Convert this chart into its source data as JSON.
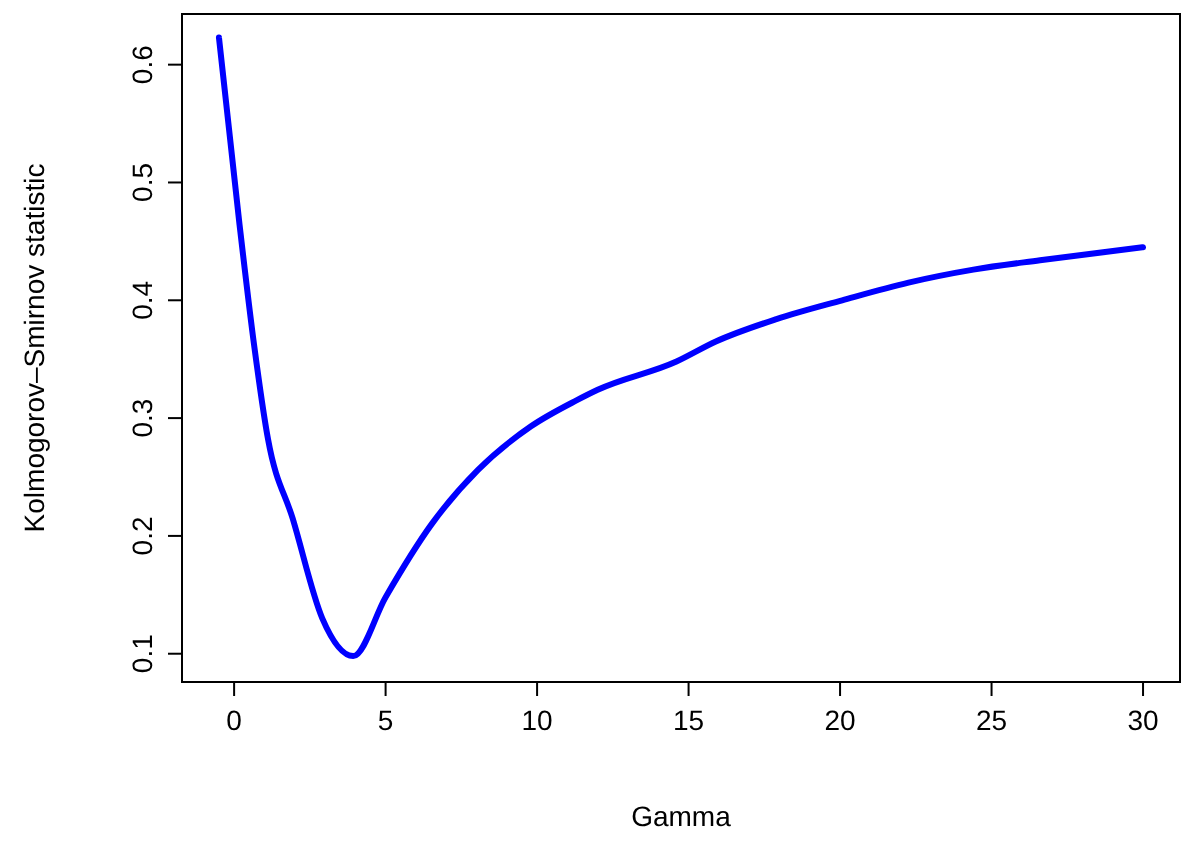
{
  "chart_data": {
    "type": "line",
    "xlabel": "Gamma",
    "ylabel": "Kolmogorov–Smirnov statistic",
    "xlim": [
      -1.72,
      31.22
    ],
    "ylim": [
      0.076,
      0.643
    ],
    "xticks": [
      0,
      5,
      10,
      15,
      20,
      25,
      30
    ],
    "yticks": [
      0.1,
      0.2,
      0.3,
      0.4,
      0.5,
      0.6
    ],
    "grid": false,
    "marker": "none",
    "line_style": "solid",
    "series": [
      {
        "color": "#0000ff",
        "x": [
          -0.5,
          0.18,
          0.66,
          1.12,
          1.93,
          2.91,
          3.93,
          5.0,
          6.52,
          8.05,
          9.8,
          11.3,
          12.0,
          14.6,
          15.9,
          17.9,
          20.07,
          22.26,
          24.4,
          26.6,
          30
        ],
        "values": [
          0.623,
          0.464,
          0.362,
          0.282,
          0.215,
          0.13,
          0.098,
          0.148,
          0.21,
          0.256,
          0.293,
          0.315,
          0.324,
          0.348,
          0.365,
          0.384,
          0.4,
          0.415,
          0.426,
          0.434,
          0.445
        ]
      }
    ]
  }
}
